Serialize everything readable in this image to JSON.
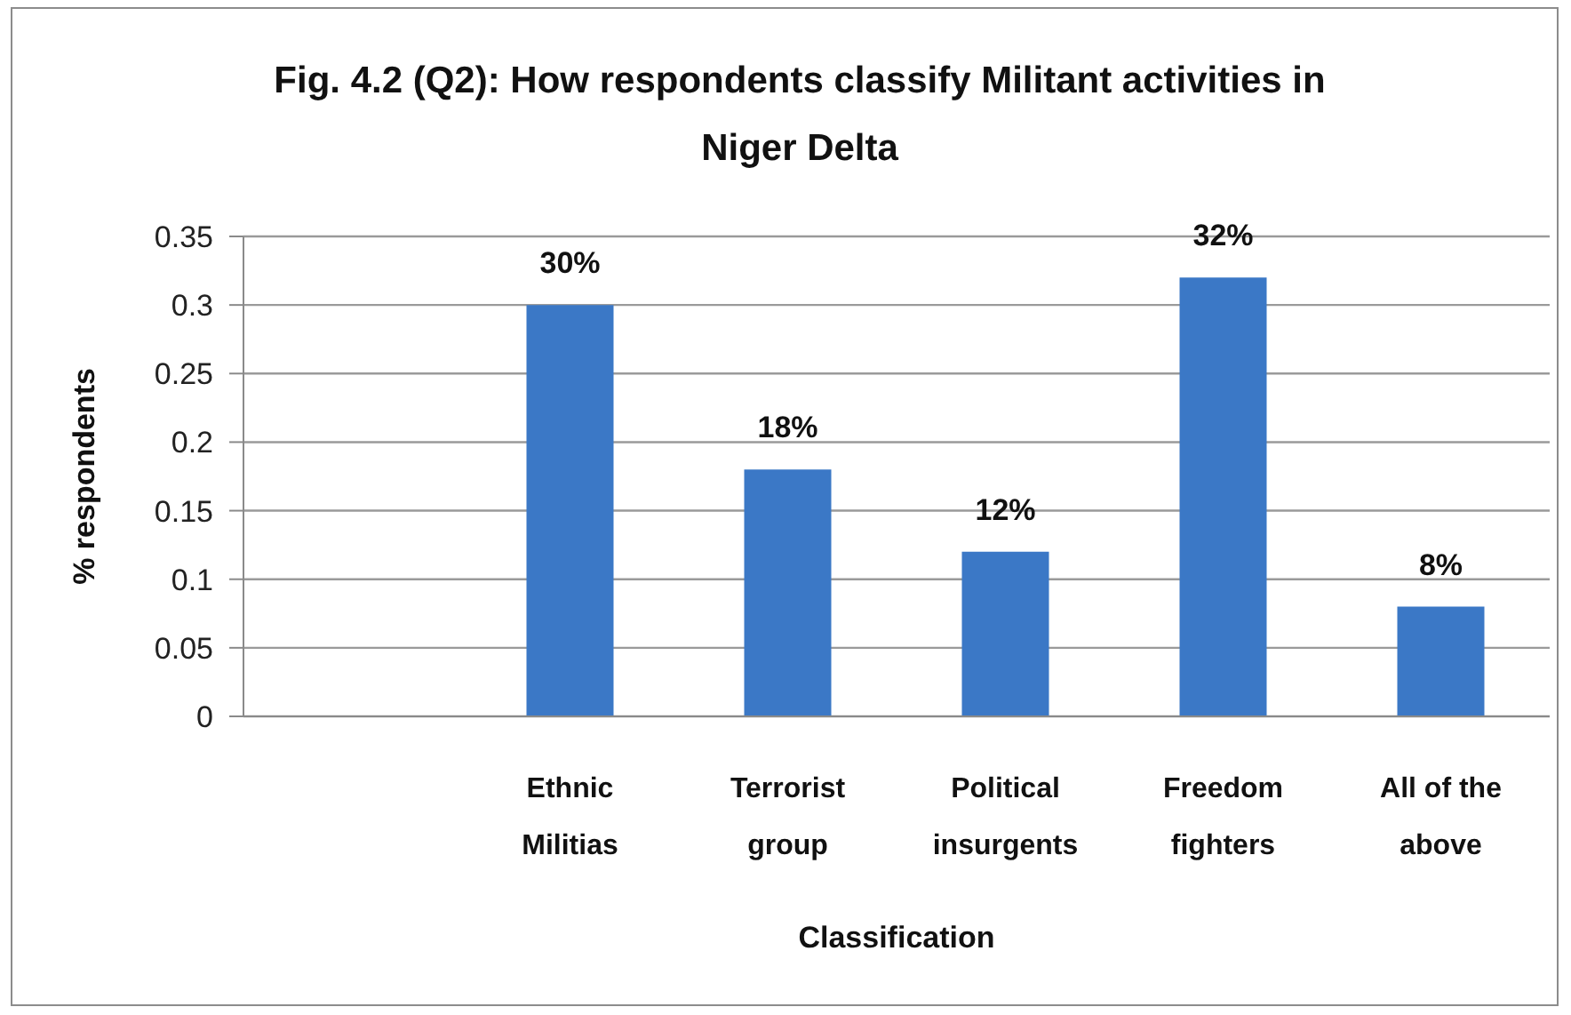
{
  "chart_data": {
    "type": "bar",
    "title": "Fig. 4.2 (Q2): How respondents classify Militant activities in Niger Delta",
    "xlabel": "Classification",
    "ylabel": "% respondents",
    "categories": [
      null,
      "Ethnic Militias",
      "Terrorist group",
      "Political insurgents",
      "Freedom fighters",
      "All of the above"
    ],
    "values": [
      null,
      0.3,
      0.18,
      0.12,
      0.32,
      0.08
    ],
    "value_labels": [
      null,
      "30%",
      "18%",
      "12%",
      "32%",
      "8%"
    ],
    "color": "#3b78c6",
    "ylim": [
      0,
      0.35
    ],
    "yticks": [
      0,
      0.05,
      0.1,
      0.15,
      0.2,
      0.25,
      0.3,
      0.35
    ],
    "grid": "y"
  }
}
